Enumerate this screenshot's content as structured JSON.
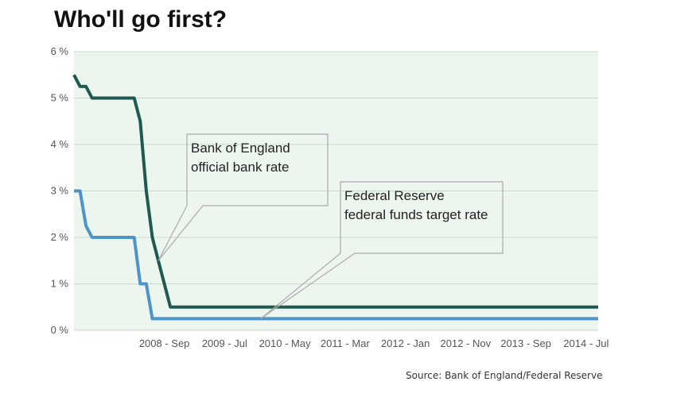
{
  "title": "Who'll go first?",
  "source": "Source: Bank of England/Federal Reserve",
  "annotations": [
    {
      "lines": [
        "Bank of England",
        "official bank rate"
      ],
      "series": "boe"
    },
    {
      "lines": [
        "Federal Reserve",
        "federal funds target rate"
      ],
      "series": "fed"
    }
  ],
  "colors": {
    "boe": "#1f5a50",
    "fed": "#4d94c8",
    "plot_bg": "#edf6ee",
    "grid": "#c7dcc9"
  },
  "chart_data": {
    "type": "line",
    "title": "Who'll go first?",
    "xlabel": "",
    "ylabel": "",
    "y_unit": "%",
    "ylim": [
      0,
      6
    ],
    "yticks": [
      {
        "value": 0,
        "label": "0 %"
      },
      {
        "value": 1,
        "label": "1 %"
      },
      {
        "value": 2,
        "label": "2 %"
      },
      {
        "value": 3,
        "label": "3 %"
      },
      {
        "value": 4,
        "label": "4 %"
      },
      {
        "value": 5,
        "label": "5 %"
      },
      {
        "value": 6,
        "label": "6 %"
      }
    ],
    "xlim": [
      "2007-06",
      "2014-09"
    ],
    "xticks": [
      {
        "date": "2008-09",
        "label": "2008 - Sep"
      },
      {
        "date": "2009-07",
        "label": "2009 - Jul"
      },
      {
        "date": "2010-05",
        "label": "2010 - May"
      },
      {
        "date": "2011-03",
        "label": "2011 - Mar"
      },
      {
        "date": "2012-01",
        "label": "2012 - Jan"
      },
      {
        "date": "2012-11",
        "label": "2012 - Nov"
      },
      {
        "date": "2013-09",
        "label": "2013 - Sep"
      },
      {
        "date": "2014-07",
        "label": "2014 - Jul"
      }
    ],
    "grid": true,
    "series": [
      {
        "key": "boe",
        "name": "Bank of England official bank rate",
        "points": [
          {
            "date": "2007-06",
            "value": 5.5
          },
          {
            "date": "2007-07",
            "value": 5.25
          },
          {
            "date": "2007-08",
            "value": 5.25
          },
          {
            "date": "2007-09",
            "value": 5.0
          },
          {
            "date": "2008-04",
            "value": 5.0
          },
          {
            "date": "2008-05",
            "value": 4.5
          },
          {
            "date": "2008-06",
            "value": 3.0
          },
          {
            "date": "2008-07",
            "value": 2.0
          },
          {
            "date": "2008-08",
            "value": 1.5
          },
          {
            "date": "2008-09",
            "value": 1.0
          },
          {
            "date": "2008-10",
            "value": 0.5
          },
          {
            "date": "2014-09",
            "value": 0.5
          }
        ]
      },
      {
        "key": "fed",
        "name": "Federal Reserve federal funds target rate",
        "points": [
          {
            "date": "2007-06",
            "value": 3.0
          },
          {
            "date": "2007-07",
            "value": 3.0
          },
          {
            "date": "2007-08",
            "value": 2.25
          },
          {
            "date": "2007-09",
            "value": 2.0
          },
          {
            "date": "2008-04",
            "value": 2.0
          },
          {
            "date": "2008-05",
            "value": 1.0
          },
          {
            "date": "2008-06",
            "value": 1.0
          },
          {
            "date": "2008-07",
            "value": 0.25
          },
          {
            "date": "2014-09",
            "value": 0.25
          }
        ]
      }
    ]
  }
}
